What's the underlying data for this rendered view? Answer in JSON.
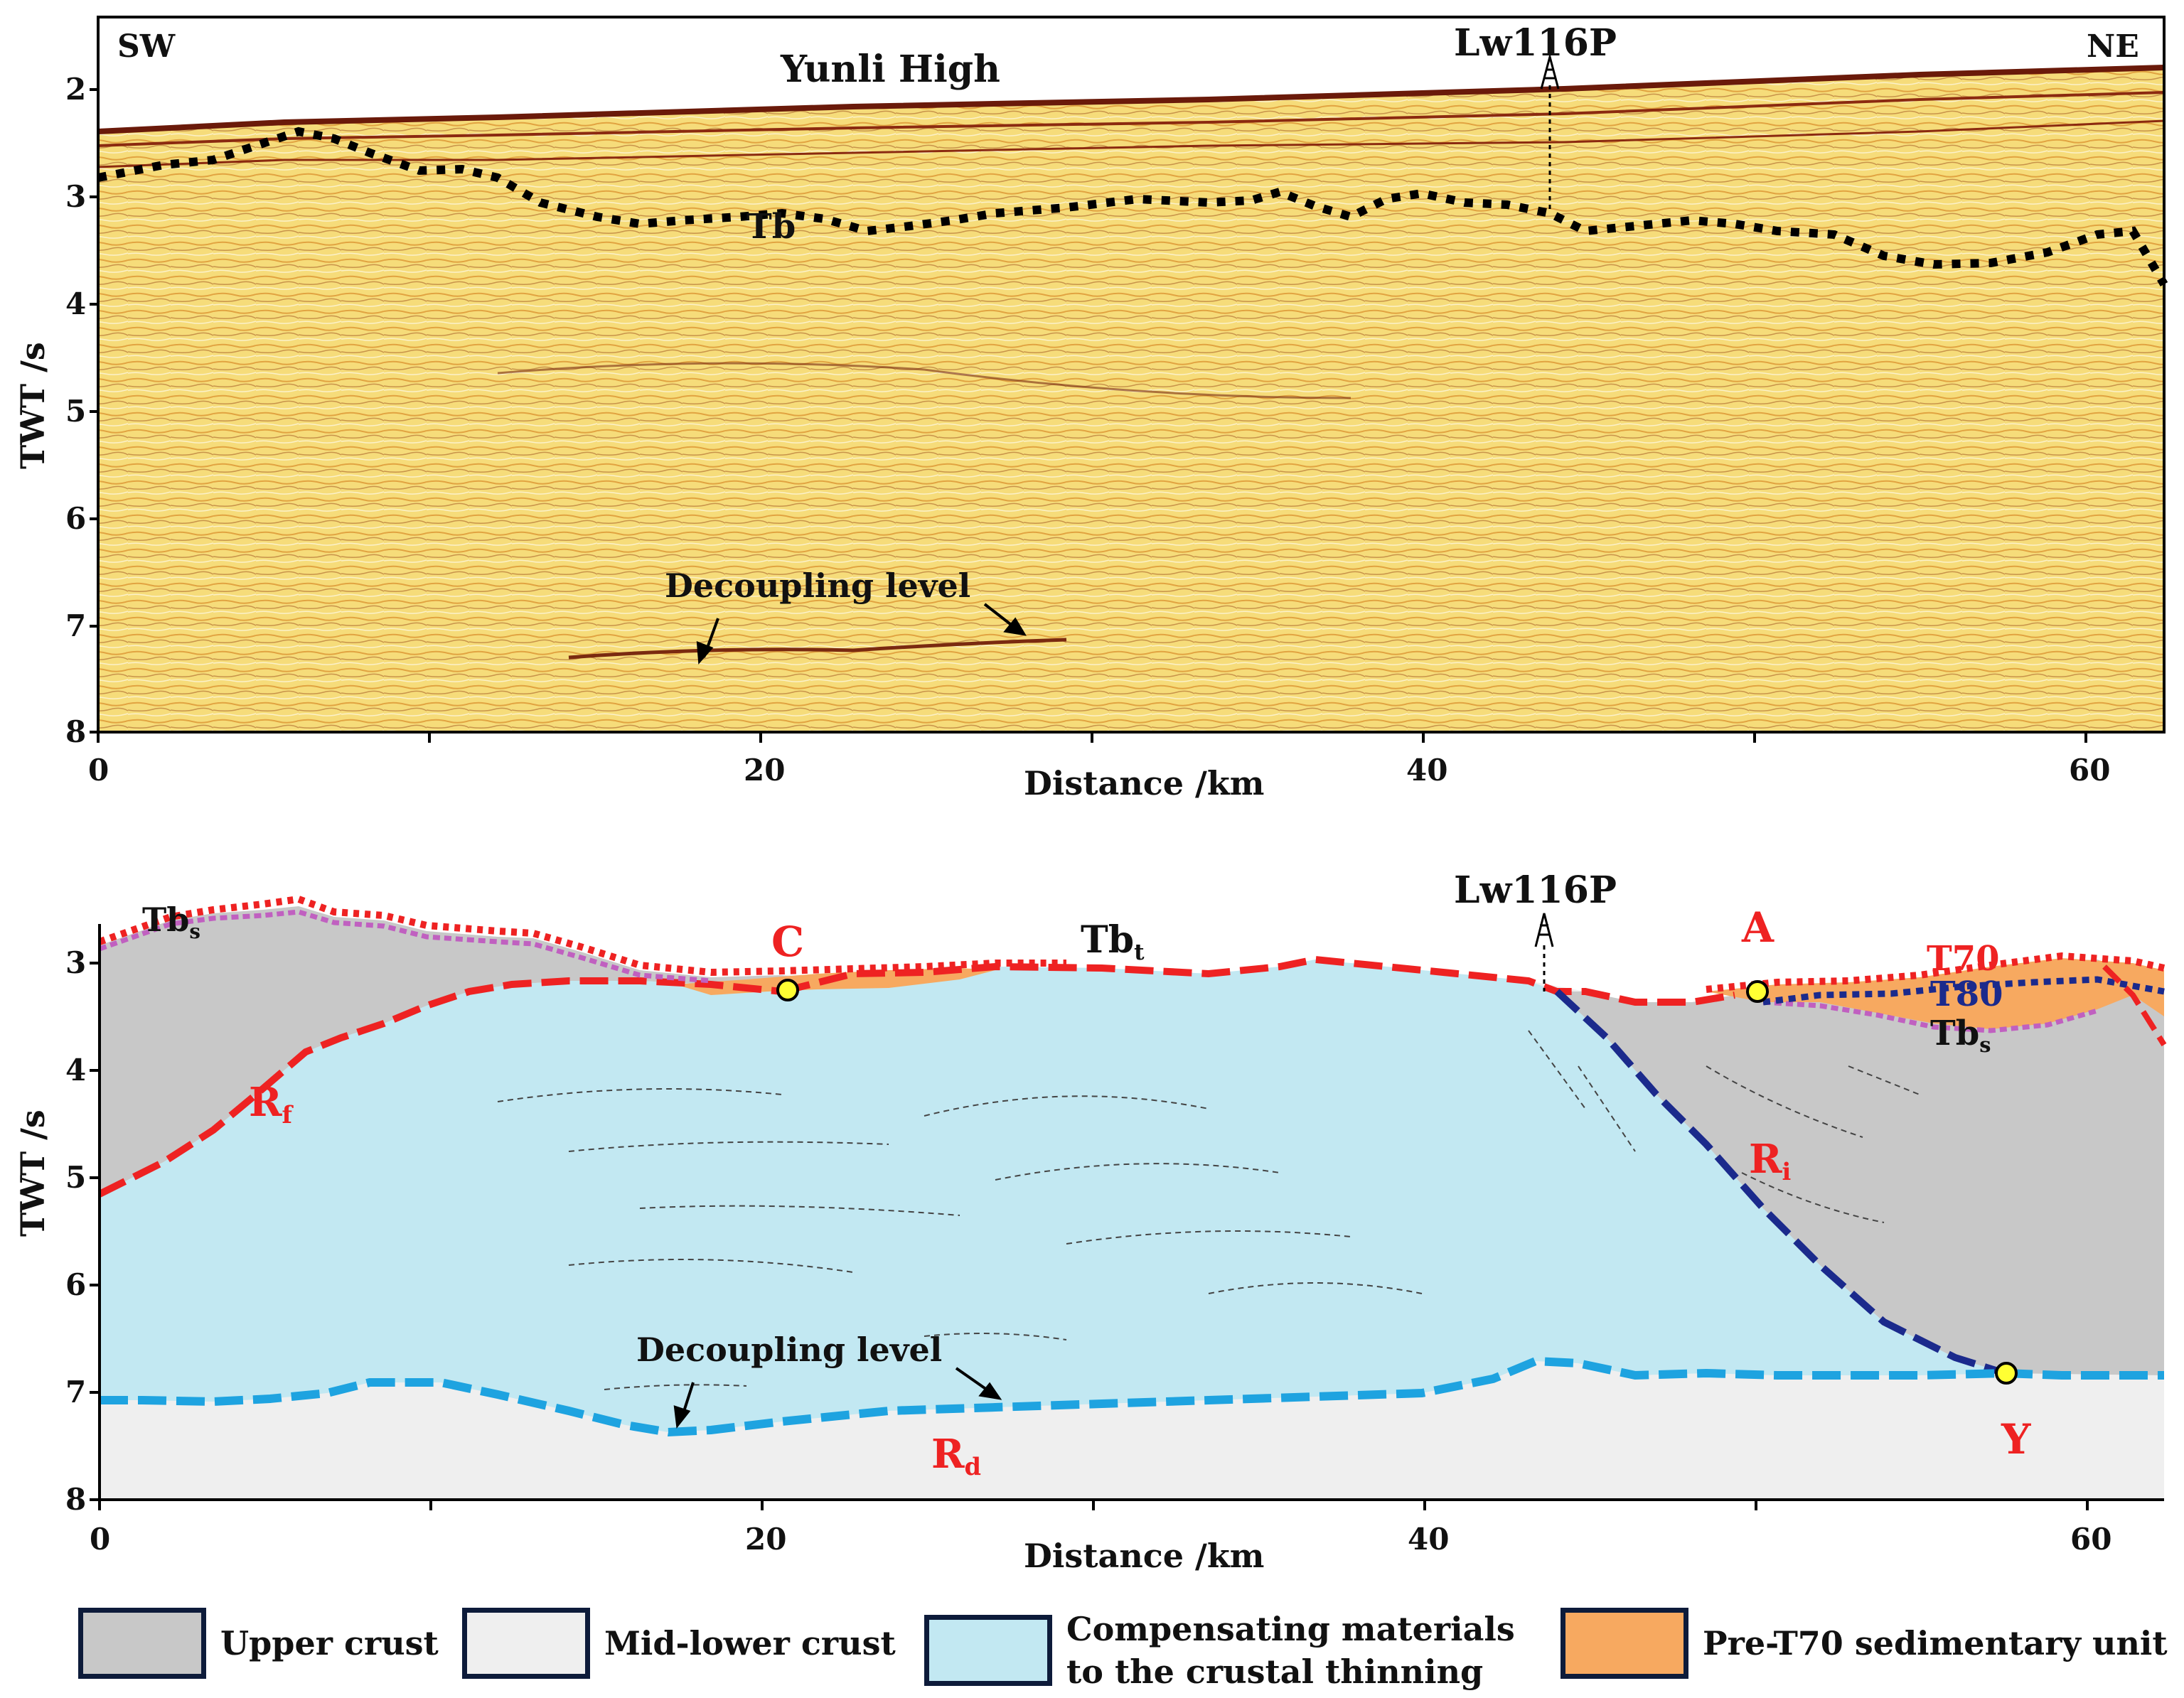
{
  "top_panel": {
    "corner_left": "SW",
    "corner_right": "NE",
    "feature_label": "Yunli High",
    "well_label": "Lw116P",
    "horizon_label": "Tb",
    "decoupling_label": "Decoupling level",
    "y_axis_label": "TWT /s",
    "x_axis_label": "Distance /km",
    "y_ticks": [
      "2",
      "3",
      "4",
      "5",
      "6",
      "7",
      "8"
    ],
    "x_ticks": [
      "0",
      "20",
      "40",
      "60"
    ]
  },
  "bottom_panel": {
    "well_label": "Lw116P",
    "label_tbs_left": "Tbs",
    "label_tbt": "Tbt",
    "label_c": "C",
    "label_a": "A",
    "label_t70": "T70",
    "label_t80": "T80",
    "label_tbs_right": "Tbs",
    "label_rf": "Rf",
    "label_ri": "Ri",
    "label_rd": "Rd",
    "label_y": "Y",
    "decoupling_label": "Decoupling level",
    "y_axis_label": "TWT /s",
    "x_axis_label": "Distance /km",
    "y_ticks": [
      "3",
      "4",
      "5",
      "6",
      "7",
      "8"
    ],
    "x_ticks": [
      "0",
      "20",
      "40",
      "60"
    ]
  },
  "legend": {
    "items": [
      {
        "label": "Upper crust",
        "color": "#c8c8c8"
      },
      {
        "label": "Mid-lower crust",
        "color": "#efefef"
      },
      {
        "label_line1": "Compensating materials",
        "label_line2": "to the crustal thinning",
        "color": "#c2e8f2"
      },
      {
        "label": "Pre-T70 sedimentary unit",
        "color": "#f7a960"
      }
    ]
  },
  "colors": {
    "seismic_bg": "#f6dc7a",
    "red_line": "#ee2222",
    "navy_line": "#1b2a8c",
    "blue_line": "#1ea3e0",
    "purple_line": "#c060c0",
    "marker_yellow": "#ffff33"
  }
}
